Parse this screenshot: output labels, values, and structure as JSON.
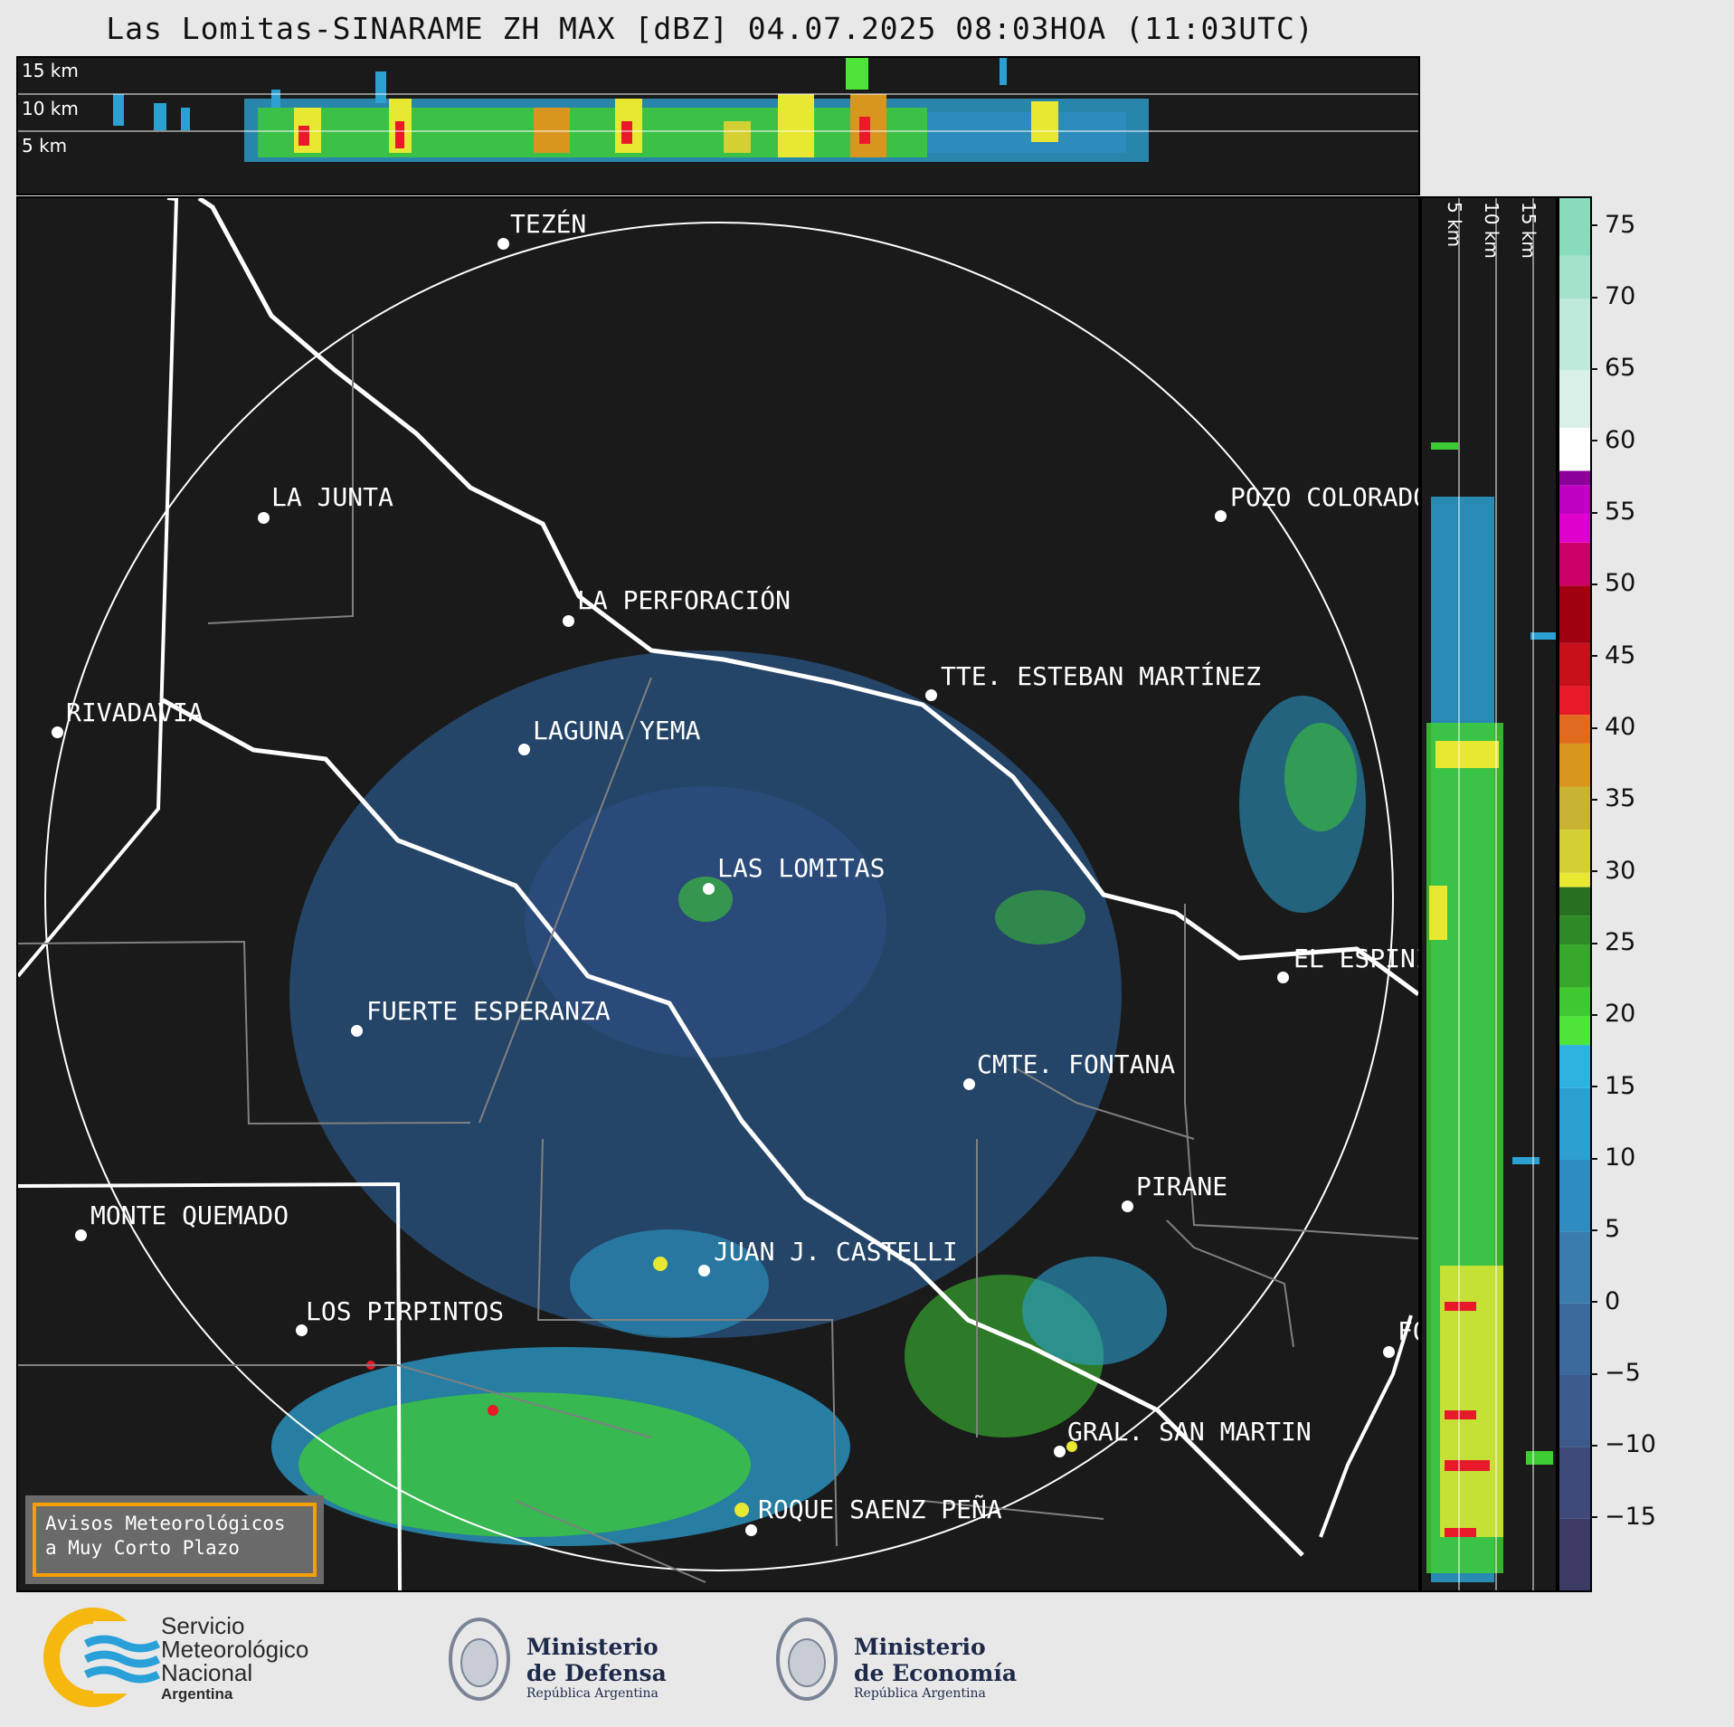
{
  "title": "Las Lomitas-SINARAME ZH MAX [dBZ] 04.07.2025 08:03HOA (11:03UTC)",
  "top_section_labels": [
    "15 km",
    "10 km",
    "5 km"
  ],
  "side_section_labels": [
    "5 km",
    "10 km",
    "15 km"
  ],
  "colorbar": {
    "unit": "dBZ",
    "ticks": [
      "75",
      "70",
      "65",
      "60",
      "55",
      "50",
      "45",
      "40",
      "35",
      "30",
      "25",
      "20",
      "15",
      "10",
      "5",
      "0",
      "−5",
      "−10",
      "−15"
    ],
    "range": [
      -20,
      77
    ],
    "colors": [
      "#3c3c66",
      "#3d4a7a",
      "#3d5a8c",
      "#3c6a9c",
      "#3b7cae",
      "#2e8cc0",
      "#2ca0d0",
      "#2eb2e0",
      "#4ee43a",
      "#40c830",
      "#38a82c",
      "#2e8a26",
      "#287020",
      "#e8e832",
      "#d4d034",
      "#c8b432",
      "#d8961e",
      "#e06a1e",
      "#e81a2a",
      "#c8101a",
      "#a00010",
      "#cc0066",
      "#e000cc",
      "#c000c0",
      "#8a0099",
      "#ffffff",
      "#d8f0e8",
      "#bfeadb",
      "#a4e2cc",
      "#88dcbc"
    ]
  },
  "cities": [
    {
      "name": "TEZÉN"
    },
    {
      "name": "LA JUNTA"
    },
    {
      "name": "POZO COLORADO"
    },
    {
      "name": "LA PERFORACIÓN"
    },
    {
      "name": "TTE. ESTEBAN MARTÍNEZ"
    },
    {
      "name": "RIVADAVIA"
    },
    {
      "name": "LAGUNA YEMA"
    },
    {
      "name": "LAS LOMITAS"
    },
    {
      "name": "EL ESPINILLO"
    },
    {
      "name": "FUERTE ESPERANZA"
    },
    {
      "name": "CMTE. FONTANA"
    },
    {
      "name": "PIRANE"
    },
    {
      "name": "MONTE QUEMADO"
    },
    {
      "name": "JUAN J. CASTELLI"
    },
    {
      "name": "LOS PIRPINTOS"
    },
    {
      "name": "FO"
    },
    {
      "name": "GRAL. SAN MARTIN"
    },
    {
      "name": "ROQUE SAENZ PEÑA"
    }
  ],
  "warning_box": {
    "line1": "Avisos Meteorológicos",
    "line2": "a Muy Corto Plazo"
  },
  "logos": {
    "smn": {
      "line1": "Servicio",
      "line2": "Meteorológico",
      "line3": "Nacional",
      "line4": "Argentina"
    },
    "defensa": {
      "line1": "Ministerio",
      "line2": "de Defensa",
      "line3": "República Argentina"
    },
    "economia": {
      "line1": "Ministerio",
      "line2": "de Economía",
      "line3": "República Argentina"
    }
  },
  "theme": {
    "panel_bg": "#1a1a1a",
    "page_bg": "#e8e8e8",
    "accent_orange": "#f5a000",
    "smn_blue": "#2aa0d8",
    "smn_yellow": "#f6b80f"
  }
}
